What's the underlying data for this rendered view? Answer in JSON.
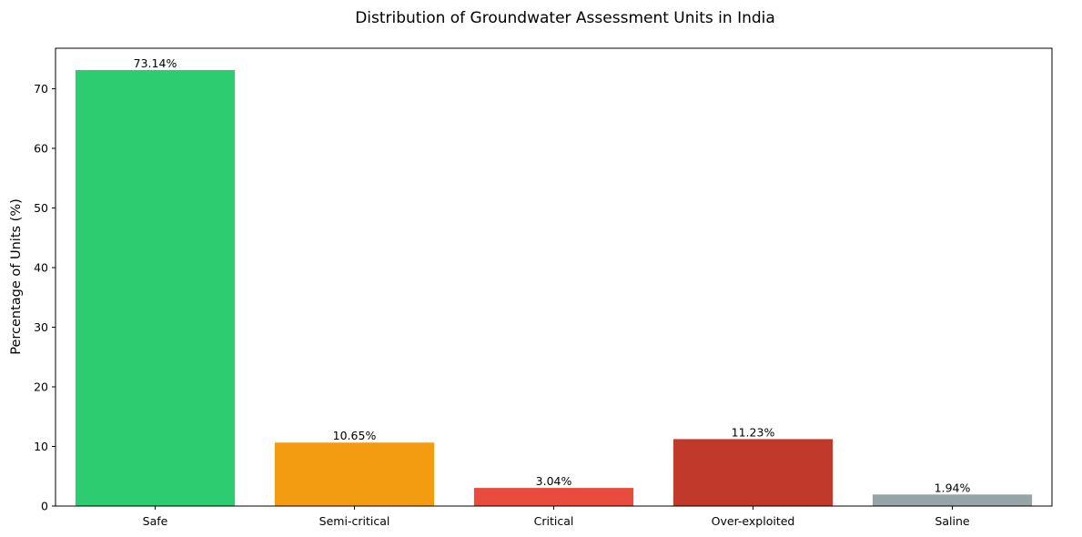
{
  "chart_data": {
    "type": "bar",
    "title": "Distribution of Groundwater Assessment Units in India",
    "xlabel": "",
    "ylabel": "Percentage of Units (%)",
    "categories": [
      "Safe",
      "Semi-critical",
      "Critical",
      "Over-exploited",
      "Saline"
    ],
    "values": [
      73.14,
      10.65,
      3.04,
      11.23,
      1.94
    ],
    "value_labels": [
      "73.14%",
      "10.65%",
      "3.04%",
      "11.23%",
      "1.94%"
    ],
    "colors": [
      "#2ecc71",
      "#f39c12",
      "#e74c3c",
      "#c0392b",
      "#95a5a6"
    ],
    "ylim": [
      0,
      76.8
    ],
    "yticks": [
      0,
      10,
      20,
      30,
      40,
      50,
      60,
      70
    ],
    "grid": false,
    "legend": "none"
  }
}
